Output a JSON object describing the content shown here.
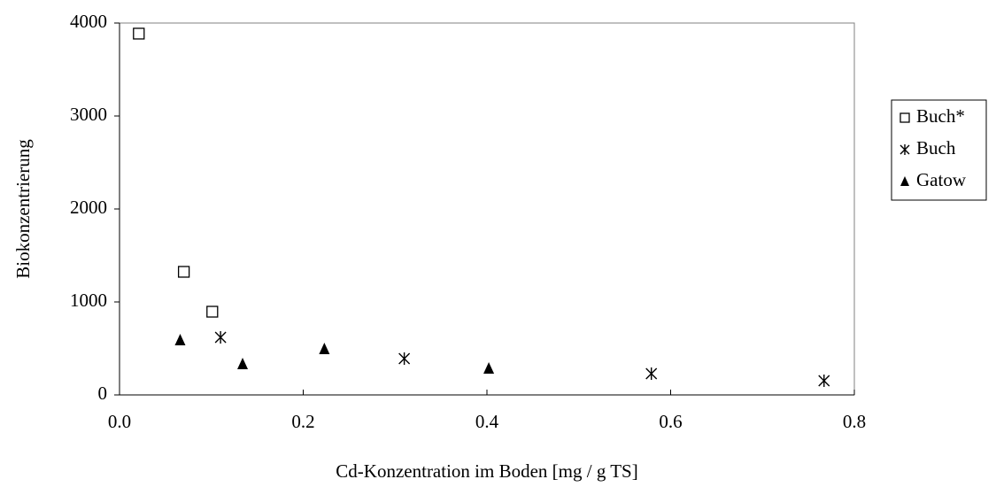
{
  "chart_data": {
    "type": "scatter",
    "x_label": "Cd-Konzentration im Boden [mg / g TS]",
    "y_label": "Biokonzentrierung",
    "xlim": [
      0,
      0.8
    ],
    "ylim": [
      0,
      4000
    ],
    "xticks": [
      {
        "value": 0,
        "label": "0.0"
      },
      0.2,
      0.4,
      0.6,
      0.8
    ],
    "yticks": [
      0,
      1000,
      2000,
      3000,
      4000
    ],
    "legend": "right",
    "series": [
      {
        "name": "Buch*",
        "marker": "square",
        "color": "#000000",
        "x": [
          0.021,
          0.07,
          0.101
        ],
        "values": [
          3886,
          1324,
          895
        ]
      },
      {
        "name": "Buch",
        "marker": "asterisk",
        "color": "#000000",
        "x": [
          0.11,
          0.31,
          0.579,
          0.767
        ],
        "values": [
          619,
          390,
          229,
          152
        ]
      },
      {
        "name": "Gatow",
        "marker": "triangle",
        "color": "#000000",
        "x": [
          0.066,
          0.134,
          0.223,
          0.402
        ],
        "values": [
          590,
          333,
          495,
          286
        ]
      }
    ]
  }
}
